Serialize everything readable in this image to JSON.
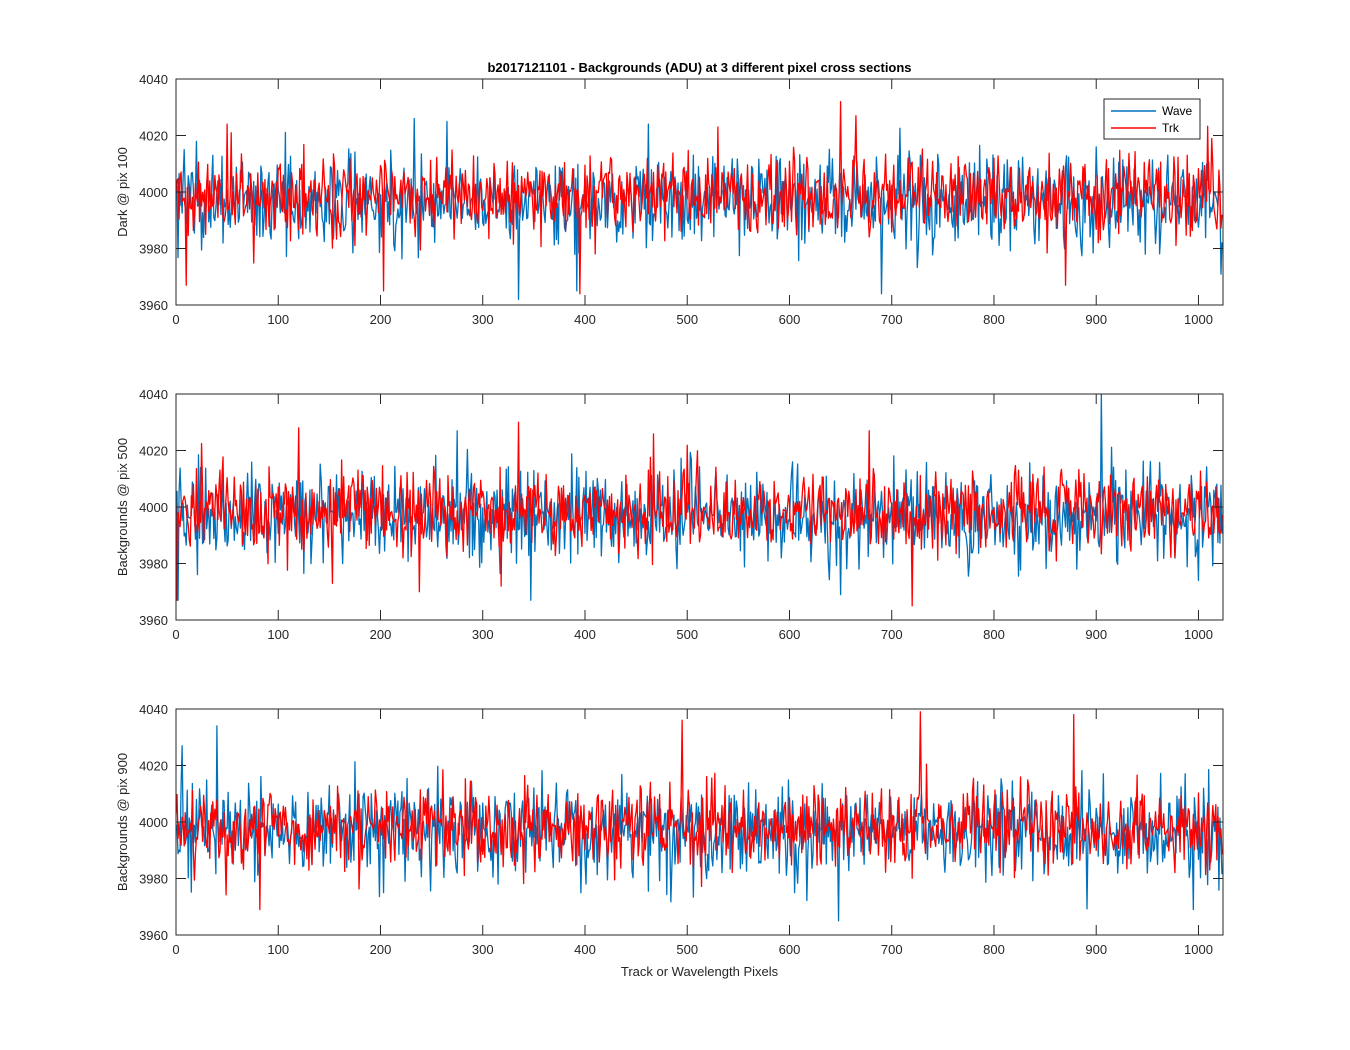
{
  "figure": {
    "title": "b2017121101 - Backgrounds (ADU) at 3 different pixel cross sections",
    "xlabel": "Track or Wavelength Pixels"
  },
  "colors": {
    "Wave": "#0072BD",
    "Trk": "#FF0000",
    "axes": "#262626"
  },
  "legend": {
    "placement": "top-right (first subplot)",
    "entries": [
      "Wave",
      "Trk"
    ]
  },
  "chart_data": [
    {
      "type": "line",
      "title": "b2017121101 - Backgrounds (ADU) at 3 different pixel cross sections",
      "xlabel": "",
      "ylabel": "Dark @ pix 100",
      "xlim": [
        0,
        1024
      ],
      "ylim": [
        3960,
        4040
      ],
      "xticks": [
        0,
        100,
        200,
        300,
        400,
        500,
        600,
        700,
        800,
        900,
        1000
      ],
      "yticks": [
        3960,
        3980,
        4000,
        4020,
        4040
      ],
      "grid": false,
      "n_points": 1024,
      "series": [
        {
          "name": "Wave",
          "color": "#0072BD",
          "mean": 3997,
          "std": 8,
          "notable": [
            [
              8,
              4015
            ],
            [
              233,
              4026
            ],
            [
              265,
              4025
            ],
            [
              335,
              3962
            ],
            [
              392,
              3965
            ],
            [
              462,
              4024
            ],
            [
              690,
              3964
            ]
          ]
        },
        {
          "name": "Trk",
          "color": "#FF0000",
          "mean": 3999,
          "std": 7,
          "notable": [
            [
              10,
              3967
            ],
            [
              50,
              4024
            ],
            [
              203,
              3965
            ],
            [
              395,
              3964
            ],
            [
              530,
              4023
            ],
            [
              650,
              4032
            ],
            [
              665,
              4027
            ],
            [
              870,
              3967
            ]
          ]
        }
      ]
    },
    {
      "type": "line",
      "title": "",
      "xlabel": "",
      "ylabel": "Backgrounds @ pix 500",
      "xlim": [
        0,
        1024
      ],
      "ylim": [
        3960,
        4040
      ],
      "xticks": [
        0,
        100,
        200,
        300,
        400,
        500,
        600,
        700,
        800,
        900,
        1000
      ],
      "yticks": [
        3960,
        3980,
        4000,
        4020,
        4040
      ],
      "grid": false,
      "n_points": 1024,
      "series": [
        {
          "name": "Wave",
          "color": "#0072BD",
          "mean": 3997,
          "std": 8,
          "notable": [
            [
              2,
              3967
            ],
            [
              275,
              4027
            ],
            [
              347,
              3967
            ],
            [
              650,
              3969
            ],
            [
              905,
              4040
            ],
            [
              1000,
              3974
            ]
          ]
        },
        {
          "name": "Trk",
          "color": "#FF0000",
          "mean": 3999,
          "std": 7,
          "notable": [
            [
              1,
              3967
            ],
            [
              120,
              4028
            ],
            [
              238,
              3970
            ],
            [
              335,
              4030
            ],
            [
              678,
              4027
            ],
            [
              720,
              3965
            ]
          ]
        }
      ]
    },
    {
      "type": "line",
      "title": "",
      "xlabel": "Track or Wavelength Pixels",
      "ylabel": "Backgrounds @ pix 900",
      "xlim": [
        0,
        1024
      ],
      "ylim": [
        3960,
        4040
      ],
      "xticks": [
        0,
        100,
        200,
        300,
        400,
        500,
        600,
        700,
        800,
        900,
        1000
      ],
      "yticks": [
        3960,
        3980,
        4000,
        4020,
        4040
      ],
      "grid": false,
      "n_points": 1024,
      "series": [
        {
          "name": "Wave",
          "color": "#0072BD",
          "mean": 3997,
          "std": 8,
          "notable": [
            [
              6,
              4027
            ],
            [
              40,
              4034
            ],
            [
              315,
              3978
            ],
            [
              648,
              3965
            ],
            [
              995,
              3969
            ]
          ]
        },
        {
          "name": "Trk",
          "color": "#FF0000",
          "mean": 3998,
          "std": 7,
          "notable": [
            [
              82,
              3969
            ],
            [
              495,
              4036
            ],
            [
              728,
              4039
            ],
            [
              878,
              4038
            ]
          ]
        }
      ]
    }
  ]
}
